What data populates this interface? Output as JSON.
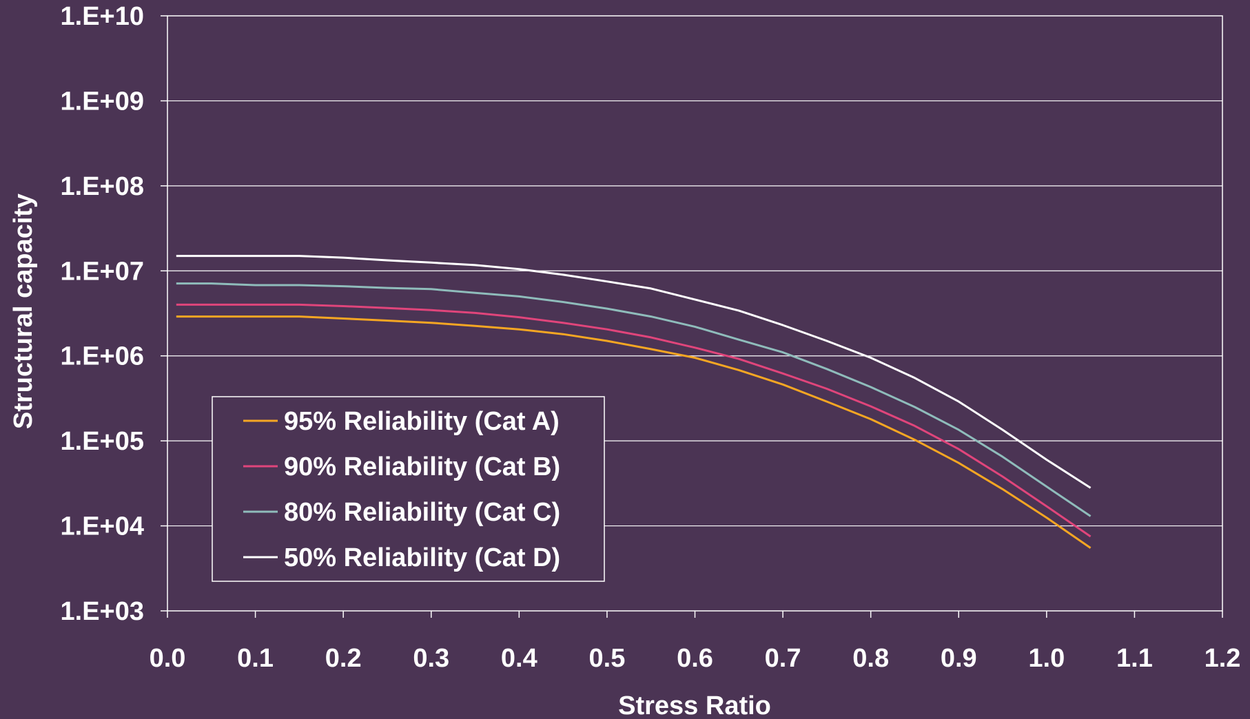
{
  "chart_data": {
    "type": "line",
    "title": "",
    "xlabel": "Stress Ratio",
    "ylabel": "Structural capacity",
    "xlim": [
      0.0,
      1.2
    ],
    "ylim": [
      1000,
      10000000000
    ],
    "y_scale": "log",
    "grid": "horizontal",
    "legend_position": "bottom-left",
    "background_color": "#4b3454",
    "x_ticks": [
      "0.0",
      "0.1",
      "0.2",
      "0.3",
      "0.4",
      "0.5",
      "0.6",
      "0.7",
      "0.8",
      "0.9",
      "1.0",
      "1.1",
      "1.2"
    ],
    "y_ticks": [
      "1.E+03",
      "1.E+04",
      "1.E+05",
      "1.E+06",
      "1.E+07",
      "1.E+08",
      "1.E+09",
      "1.E+10"
    ],
    "series": [
      {
        "name": "95% Reliability (Cat A)",
        "color": "#f5a623",
        "x": [
          0.01,
          0.05,
          0.1,
          0.15,
          0.2,
          0.25,
          0.3,
          0.35,
          0.4,
          0.45,
          0.5,
          0.55,
          0.6,
          0.65,
          0.7,
          0.75,
          0.8,
          0.85,
          0.9,
          0.95,
          1.0,
          1.05
        ],
        "y": [
          2900000,
          2900000,
          2900000,
          2900000,
          2750000,
          2600000,
          2450000,
          2250000,
          2050000,
          1800000,
          1500000,
          1200000,
          950000,
          680000,
          460000,
          290000,
          180000,
          103000,
          55000,
          27000,
          12500,
          5500
        ]
      },
      {
        "name": "90% Reliability (Cat B)",
        "color": "#e0457b",
        "x": [
          0.01,
          0.05,
          0.1,
          0.15,
          0.2,
          0.25,
          0.3,
          0.35,
          0.4,
          0.45,
          0.5,
          0.55,
          0.6,
          0.65,
          0.7,
          0.75,
          0.8,
          0.85,
          0.9,
          0.95,
          1.0,
          1.05
        ],
        "y": [
          4000000,
          4000000,
          4000000,
          4000000,
          3850000,
          3650000,
          3450000,
          3200000,
          2850000,
          2450000,
          2050000,
          1650000,
          1250000,
          920000,
          620000,
          410000,
          255000,
          150000,
          80000,
          38000,
          17000,
          7500
        ]
      },
      {
        "name": "80% Reliability (Cat C)",
        "color": "#8fbcbb",
        "x": [
          0.01,
          0.05,
          0.1,
          0.15,
          0.2,
          0.25,
          0.3,
          0.35,
          0.4,
          0.45,
          0.5,
          0.55,
          0.6,
          0.65,
          0.7,
          0.75,
          0.8,
          0.85,
          0.9,
          0.95,
          1.0,
          1.05
        ],
        "y": [
          7100000,
          7100000,
          6800000,
          6800000,
          6600000,
          6300000,
          6100000,
          5500000,
          5000000,
          4300000,
          3600000,
          2900000,
          2200000,
          1550000,
          1100000,
          700000,
          430000,
          250000,
          135000,
          65000,
          29000,
          13000
        ]
      },
      {
        "name": "50% Reliability (Cat D)",
        "color": "#ffffff",
        "x": [
          0.01,
          0.05,
          0.1,
          0.15,
          0.2,
          0.25,
          0.3,
          0.35,
          0.4,
          0.45,
          0.5,
          0.55,
          0.6,
          0.65,
          0.7,
          0.75,
          0.8,
          0.85,
          0.9,
          0.95,
          1.0,
          1.05
        ],
        "y": [
          15000000,
          15000000,
          15000000,
          15000000,
          14300000,
          13300000,
          12500000,
          11700000,
          10500000,
          9000000,
          7500000,
          6200000,
          4600000,
          3400000,
          2300000,
          1500000,
          950000,
          550000,
          290000,
          135000,
          60000,
          28000
        ]
      }
    ]
  }
}
